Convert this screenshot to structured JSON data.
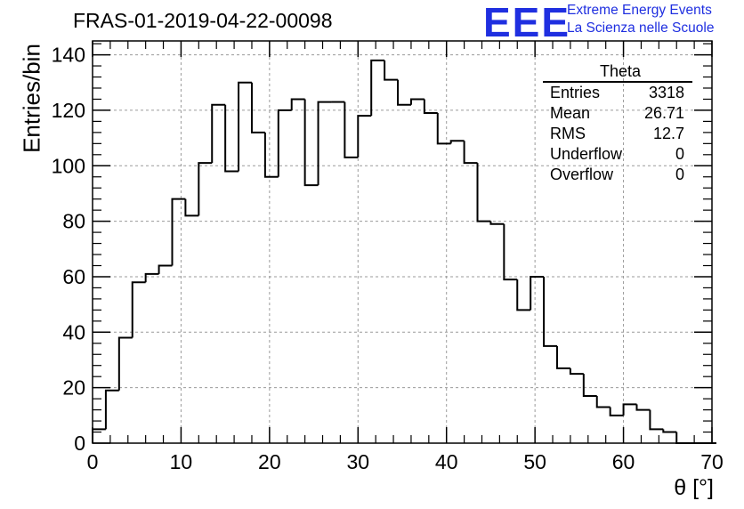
{
  "header": {
    "title": "FRAS-01-2019-04-22-00098",
    "logo": "EEE",
    "logo_line1": "Extreme Energy Events",
    "logo_line2": "La Scienza nelle Scuole"
  },
  "stats_box": {
    "title": "Theta",
    "rows": [
      {
        "label": "Entries",
        "value": "3318"
      },
      {
        "label": "Mean",
        "value": "26.71"
      },
      {
        "label": "RMS",
        "value": "12.7"
      },
      {
        "label": "Underflow",
        "value": "0"
      },
      {
        "label": "Overflow",
        "value": "0"
      }
    ]
  },
  "chart_data": {
    "type": "bar",
    "subtype": "histogram-step",
    "xlabel": "θ [°]",
    "ylabel": "Entries/bin",
    "xlim": [
      0,
      70
    ],
    "ylim": [
      0,
      145
    ],
    "bin_width": 1.5,
    "x_ticks": [
      0,
      10,
      20,
      30,
      40,
      50,
      60,
      70
    ],
    "y_ticks": [
      0,
      20,
      40,
      60,
      80,
      100,
      120,
      140
    ],
    "grid": true,
    "legend": "none",
    "line_color": "#000000",
    "values": [
      5,
      19,
      38,
      58,
      61,
      64,
      88,
      82,
      101,
      122,
      98,
      130,
      112,
      96,
      120,
      124,
      93,
      123,
      123,
      103,
      118,
      138,
      131,
      122,
      124,
      119,
      108,
      109,
      101,
      80,
      79,
      59,
      48,
      60,
      35,
      27,
      25,
      17,
      13,
      10,
      14,
      12,
      5,
      4,
      0,
      0,
      0
    ]
  }
}
